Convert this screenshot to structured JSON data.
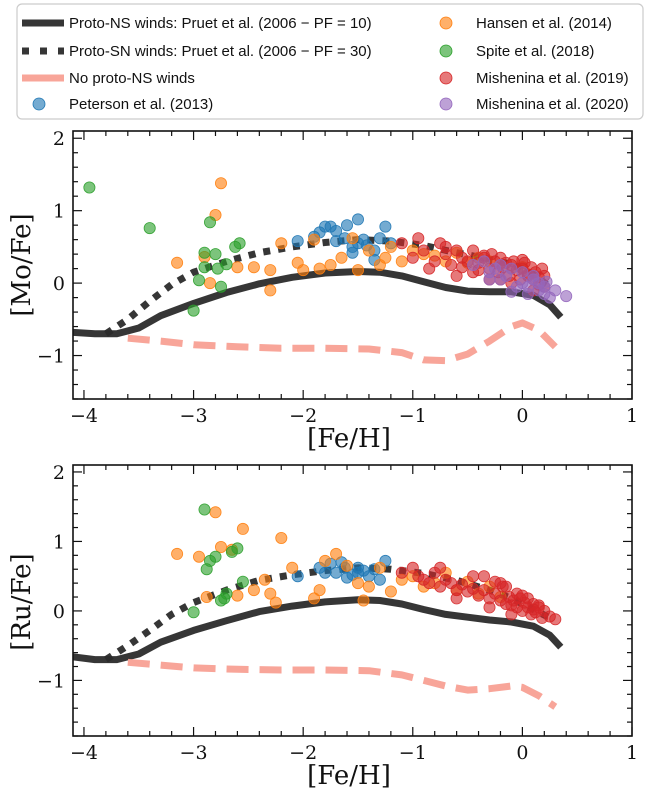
{
  "chart_data": {
    "type": "scatter",
    "xlabel": "[Fe/H]",
    "xlim": [
      -4.1,
      1.0
    ],
    "xticks": [
      -4,
      -3,
      -2,
      -1,
      0,
      1
    ],
    "xtick_labels": [
      "−4",
      "−3",
      "−2",
      "−1",
      "0",
      "1"
    ],
    "legend": {
      "placement": "top (above panels), two columns",
      "entries": [
        {
          "label": "Proto-NS winds: Pruet et al. (2006 − PF = 10)",
          "kind": "line",
          "style": "solid",
          "color": "#2b2b2b"
        },
        {
          "label": "Proto-SN winds: Pruet et al. (2006 − PF = 30)",
          "kind": "line",
          "style": "dotted",
          "color": "#2b2b2b"
        },
        {
          "label": "No proto-NS winds",
          "kind": "line",
          "style": "dashed",
          "color": "#f8a093"
        },
        {
          "label": "Peterson et al. (2013)",
          "kind": "point",
          "color": "#1f77b4"
        },
        {
          "label": "Hansen et al. (2014)",
          "kind": "point",
          "color": "#ff7f0e"
        },
        {
          "label": "Spite et al. (2018)",
          "kind": "point",
          "color": "#2ca02c"
        },
        {
          "label": "Mishenina et al. (2019)",
          "kind": "point",
          "color": "#d62728"
        },
        {
          "label": "Mishenina et al. (2020)",
          "kind": "point",
          "color": "#9467bd"
        }
      ]
    },
    "panels": [
      {
        "name": "mo",
        "ylabel": "[Mo/Fe]",
        "ylim": [
          -1.6,
          2.1
        ],
        "yticks": [
          -1,
          0,
          1,
          2
        ],
        "ytick_labels": [
          "−1",
          "0",
          "1",
          "2"
        ],
        "series": [
          {
            "name": "Proto-NS winds: Pruet et al. (2006 − PF = 10)",
            "kind": "line",
            "style": "solid",
            "x": [
              -4.1,
              -3.9,
              -3.7,
              -3.5,
              -3.3,
              -3.0,
              -2.7,
              -2.4,
              -2.1,
              -1.8,
              -1.5,
              -1.3,
              -1.1,
              -0.9,
              -0.7,
              -0.5,
              -0.3,
              -0.1,
              0.1,
              0.25,
              0.35
            ],
            "y": [
              -0.68,
              -0.7,
              -0.7,
              -0.62,
              -0.45,
              -0.28,
              -0.13,
              -0.01,
              0.08,
              0.14,
              0.16,
              0.15,
              0.1,
              0.02,
              -0.06,
              -0.11,
              -0.12,
              -0.12,
              -0.17,
              -0.3,
              -0.47
            ]
          },
          {
            "name": "Proto-SN winds: Pruet et al. (2006 − PF = 30)",
            "kind": "line",
            "style": "dotted",
            "x": [
              -3.8,
              -3.6,
              -3.4,
              -3.2,
              -3.0,
              -2.7,
              -2.4,
              -2.1,
              -1.8,
              -1.5,
              -1.2,
              -0.9,
              -0.6,
              -0.3,
              -0.1,
              0.1,
              0.25
            ],
            "y": [
              -0.7,
              -0.5,
              -0.25,
              -0.02,
              0.15,
              0.3,
              0.42,
              0.5,
              0.56,
              0.6,
              0.58,
              0.52,
              0.42,
              0.33,
              0.26,
              0.12,
              -0.05
            ]
          },
          {
            "name": "No proto-NS winds",
            "kind": "line",
            "style": "dashed",
            "x": [
              -3.6,
              -3.3,
              -3.0,
              -2.6,
              -2.2,
              -1.8,
              -1.4,
              -1.1,
              -0.9,
              -0.7,
              -0.5,
              -0.3,
              -0.1,
              0.0,
              0.15,
              0.3
            ],
            "y": [
              -0.76,
              -0.8,
              -0.85,
              -0.88,
              -0.9,
              -0.9,
              -0.91,
              -0.96,
              -1.06,
              -1.07,
              -0.98,
              -0.8,
              -0.6,
              -0.55,
              -0.65,
              -0.88
            ]
          },
          {
            "name": "Peterson et al. (2013)",
            "kind": "points",
            "x": [
              -2.05,
              -1.85,
              -1.8,
              -1.75,
              -1.7,
              -1.62,
              -1.55,
              -1.5,
              -1.45,
              -1.42,
              -1.35,
              -1.3,
              -1.25,
              -1.5,
              -1.7,
              -1.9,
              -1.55,
              -1.2,
              -1.6,
              -1.35
            ],
            "y": [
              0.58,
              0.7,
              0.78,
              0.78,
              0.72,
              0.62,
              0.5,
              0.55,
              0.6,
              0.52,
              0.45,
              0.62,
              0.78,
              0.88,
              0.58,
              0.64,
              0.42,
              0.55,
              0.8,
              0.32
            ]
          },
          {
            "name": "Hansen et al. (2014)",
            "kind": "points",
            "x": [
              -3.15,
              -2.9,
              -2.8,
              -2.75,
              -2.6,
              -2.45,
              -2.3,
              -2.3,
              -2.05,
              -2.0,
              -1.85,
              -1.75,
              -1.65,
              -1.5,
              -1.4,
              -1.3,
              -1.2,
              -1.1,
              -1.0,
              -0.9,
              -0.8,
              -0.7,
              -0.6,
              -0.5,
              -0.4,
              -0.3,
              -0.2,
              -0.1,
              0.0,
              -2.85,
              -2.2,
              -1.9,
              -1.55,
              -1.25
            ],
            "y": [
              0.28,
              0.36,
              0.94,
              1.38,
              0.22,
              0.22,
              0.18,
              -0.1,
              0.28,
              0.18,
              0.2,
              0.25,
              0.35,
              0.18,
              0.45,
              0.25,
              0.5,
              0.3,
              0.45,
              0.4,
              0.38,
              0.3,
              0.42,
              0.28,
              0.35,
              0.3,
              0.25,
              0.2,
              0.22,
              0.0,
              0.55,
              0.6,
              0.62,
              0.35
            ]
          },
          {
            "name": "Spite et al. (2018)",
            "kind": "points",
            "x": [
              -3.95,
              -3.4,
              -3.0,
              -2.95,
              -2.9,
              -2.85,
              -2.8,
              -2.75,
              -2.7,
              -2.62,
              -2.58,
              -2.9,
              -2.78
            ],
            "y": [
              1.32,
              0.76,
              -0.38,
              0.04,
              0.42,
              0.84,
              0.4,
              -0.05,
              0.26,
              0.5,
              0.55,
              0.22,
              0.2
            ]
          },
          {
            "name": "Mishenina et al. (2019)",
            "kind": "points",
            "x": [
              -1.1,
              -1.0,
              -0.9,
              -0.8,
              -0.75,
              -0.7,
              -0.65,
              -0.6,
              -0.55,
              -0.5,
              -0.45,
              -0.4,
              -0.35,
              -0.3,
              -0.28,
              -0.25,
              -0.22,
              -0.2,
              -0.18,
              -0.15,
              -0.12,
              -0.1,
              -0.08,
              -0.05,
              -0.02,
              0.0,
              0.02,
              0.05,
              0.08,
              0.1,
              0.12,
              0.15,
              0.18,
              0.2,
              -0.95,
              -0.85,
              -0.6,
              -0.45,
              -0.3,
              -0.1,
              0.05,
              0.15,
              -0.7,
              -0.35,
              0.0,
              0.2,
              -0.55,
              -0.2,
              0.1,
              -0.4
            ],
            "y": [
              0.55,
              0.35,
              0.45,
              0.3,
              0.55,
              0.4,
              0.25,
              0.45,
              0.35,
              0.3,
              0.45,
              0.28,
              0.35,
              0.2,
              0.4,
              0.3,
              0.15,
              0.35,
              0.22,
              0.28,
              0.1,
              0.25,
              0.3,
              0.18,
              0.05,
              0.2,
              0.28,
              0.12,
              0.22,
              0.05,
              0.15,
              0.08,
              0.2,
              -0.05,
              0.62,
              0.2,
              0.1,
              0.15,
              0.05,
              0.0,
              0.1,
              -0.02,
              0.5,
              0.38,
              0.32,
              0.1,
              0.22,
              0.05,
              -0.1,
              0.18
            ]
          },
          {
            "name": "Mishenina et al. (2020)",
            "kind": "points",
            "x": [
              -0.45,
              -0.35,
              -0.3,
              -0.25,
              -0.2,
              -0.15,
              -0.1,
              -0.05,
              0.0,
              0.05,
              0.1,
              0.15,
              0.2,
              0.25,
              0.3,
              0.4,
              -0.1,
              0.0,
              0.1,
              0.2,
              -0.2,
              0.05,
              0.15,
              -0.3,
              0.22
            ],
            "y": [
              0.25,
              0.3,
              0.15,
              0.2,
              0.05,
              0.1,
              0.2,
              -0.05,
              0.0,
              -0.15,
              0.1,
              -0.1,
              -0.05,
              -0.2,
              -0.1,
              -0.18,
              -0.12,
              0.15,
              0.05,
              -0.15,
              0.25,
              -0.05,
              0.0,
              0.05,
              0.02
            ]
          }
        ]
      },
      {
        "name": "ru",
        "ylabel": "[Ru/Fe]",
        "ylim": [
          -1.8,
          2.1
        ],
        "yticks": [
          -1,
          0,
          1,
          2
        ],
        "ytick_labels": [
          "−1",
          "0",
          "1",
          "2"
        ],
        "series": [
          {
            "name": "Proto-NS winds: Pruet et al. (2006 − PF = 10)",
            "kind": "line",
            "style": "solid",
            "x": [
              -4.1,
              -3.9,
              -3.7,
              -3.5,
              -3.3,
              -3.0,
              -2.7,
              -2.4,
              -2.1,
              -1.8,
              -1.5,
              -1.3,
              -1.1,
              -0.9,
              -0.7,
              -0.5,
              -0.3,
              -0.1,
              0.1,
              0.25,
              0.35
            ],
            "y": [
              -0.66,
              -0.7,
              -0.7,
              -0.62,
              -0.45,
              -0.28,
              -0.14,
              -0.01,
              0.07,
              0.13,
              0.16,
              0.15,
              0.1,
              0.02,
              -0.05,
              -0.09,
              -0.13,
              -0.16,
              -0.22,
              -0.35,
              -0.52
            ]
          },
          {
            "name": "Proto-SN winds: Pruet et al. (2006 − PF = 30)",
            "kind": "line",
            "style": "dotted",
            "x": [
              -3.8,
              -3.6,
              -3.4,
              -3.2,
              -3.0,
              -2.7,
              -2.4,
              -2.1,
              -1.8,
              -1.5,
              -1.2,
              -0.9,
              -0.6,
              -0.3,
              -0.1,
              0.1,
              0.25
            ],
            "y": [
              -0.7,
              -0.5,
              -0.28,
              -0.05,
              0.12,
              0.3,
              0.44,
              0.52,
              0.58,
              0.62,
              0.6,
              0.54,
              0.44,
              0.3,
              0.18,
              0.02,
              -0.1
            ]
          },
          {
            "name": "No proto-NS winds",
            "kind": "line",
            "style": "dashed",
            "x": [
              -3.6,
              -3.3,
              -3.0,
              -2.6,
              -2.2,
              -1.8,
              -1.4,
              -1.1,
              -0.9,
              -0.7,
              -0.5,
              -0.3,
              -0.1,
              0.0,
              0.15,
              0.3
            ],
            "y": [
              -0.74,
              -0.78,
              -0.82,
              -0.84,
              -0.85,
              -0.85,
              -0.86,
              -0.92,
              -1.0,
              -1.08,
              -1.14,
              -1.12,
              -1.08,
              -1.1,
              -1.22,
              -1.38
            ]
          },
          {
            "name": "Peterson et al. (2013)",
            "kind": "points",
            "x": [
              -2.05,
              -1.85,
              -1.75,
              -1.7,
              -1.62,
              -1.55,
              -1.5,
              -1.45,
              -1.4,
              -1.3,
              -1.25,
              -1.6,
              -1.8,
              -1.5,
              -1.35,
              -1.65
            ],
            "y": [
              0.5,
              0.62,
              0.68,
              0.55,
              0.62,
              0.52,
              0.55,
              0.58,
              0.5,
              0.45,
              0.72,
              0.48,
              0.55,
              0.62,
              0.6,
              0.7
            ]
          },
          {
            "name": "Hansen et al. (2014)",
            "kind": "points",
            "x": [
              -3.15,
              -2.95,
              -2.8,
              -2.75,
              -2.65,
              -2.55,
              -2.45,
              -2.3,
              -2.2,
              -2.1,
              -1.9,
              -1.8,
              -1.7,
              -1.6,
              -1.5,
              -1.4,
              -1.3,
              -1.2,
              -1.1,
              -1.0,
              -0.9,
              -0.8,
              -0.7,
              -0.6,
              -0.5,
              -0.4,
              -0.3,
              -0.2,
              -2.88,
              -2.6,
              -2.35,
              -2.25,
              -1.85,
              -1.45
            ],
            "y": [
              0.82,
              0.78,
              1.42,
              0.92,
              0.88,
              1.18,
              0.3,
              0.25,
              1.05,
              0.62,
              0.18,
              0.72,
              0.82,
              0.65,
              0.4,
              0.35,
              0.62,
              0.28,
              0.45,
              0.5,
              0.35,
              0.4,
              0.55,
              0.3,
              0.42,
              0.25,
              0.35,
              0.2,
              0.2,
              0.22,
              0.45,
              0.12,
              0.3,
              0.15
            ]
          },
          {
            "name": "Spite et al. (2018)",
            "kind": "points",
            "x": [
              -3.0,
              -2.9,
              -2.85,
              -2.8,
              -2.75,
              -2.7,
              -2.65,
              -2.6,
              -2.55,
              -2.72,
              -2.88
            ],
            "y": [
              -0.02,
              1.46,
              0.72,
              0.78,
              0.15,
              0.25,
              0.85,
              0.9,
              0.42,
              0.18,
              0.6
            ]
          },
          {
            "name": "Mishenina et al. (2019)",
            "kind": "points",
            "x": [
              -1.1,
              -1.0,
              -0.95,
              -0.9,
              -0.85,
              -0.8,
              -0.75,
              -0.7,
              -0.65,
              -0.6,
              -0.55,
              -0.5,
              -0.45,
              -0.4,
              -0.35,
              -0.3,
              -0.25,
              -0.2,
              -0.18,
              -0.15,
              -0.12,
              -0.1,
              -0.08,
              -0.05,
              -0.02,
              0.0,
              0.02,
              0.05,
              0.08,
              0.1,
              0.12,
              0.15,
              0.18,
              0.2,
              0.25,
              0.3,
              -0.35,
              -0.25,
              -0.15,
              -0.05,
              0.05,
              0.15,
              -0.1,
              0.0,
              0.1,
              -0.3,
              -0.2,
              -0.45,
              -0.6,
              -0.75
            ],
            "y": [
              0.55,
              0.62,
              0.5,
              0.45,
              0.4,
              0.55,
              0.35,
              0.45,
              0.4,
              0.3,
              0.38,
              0.28,
              0.32,
              0.22,
              0.3,
              0.18,
              0.25,
              0.15,
              0.35,
              0.1,
              0.2,
              0.08,
              0.15,
              0.05,
              0.18,
              0.0,
              0.12,
              0.05,
              -0.05,
              0.1,
              -0.02,
              0.08,
              -0.1,
              0.0,
              -0.08,
              -0.12,
              0.5,
              0.42,
              0.35,
              0.25,
              0.18,
              0.05,
              -0.05,
              0.22,
              0.02,
              0.05,
              0.4,
              0.5,
              0.18,
              0.62
            ]
          }
        ]
      }
    ]
  }
}
